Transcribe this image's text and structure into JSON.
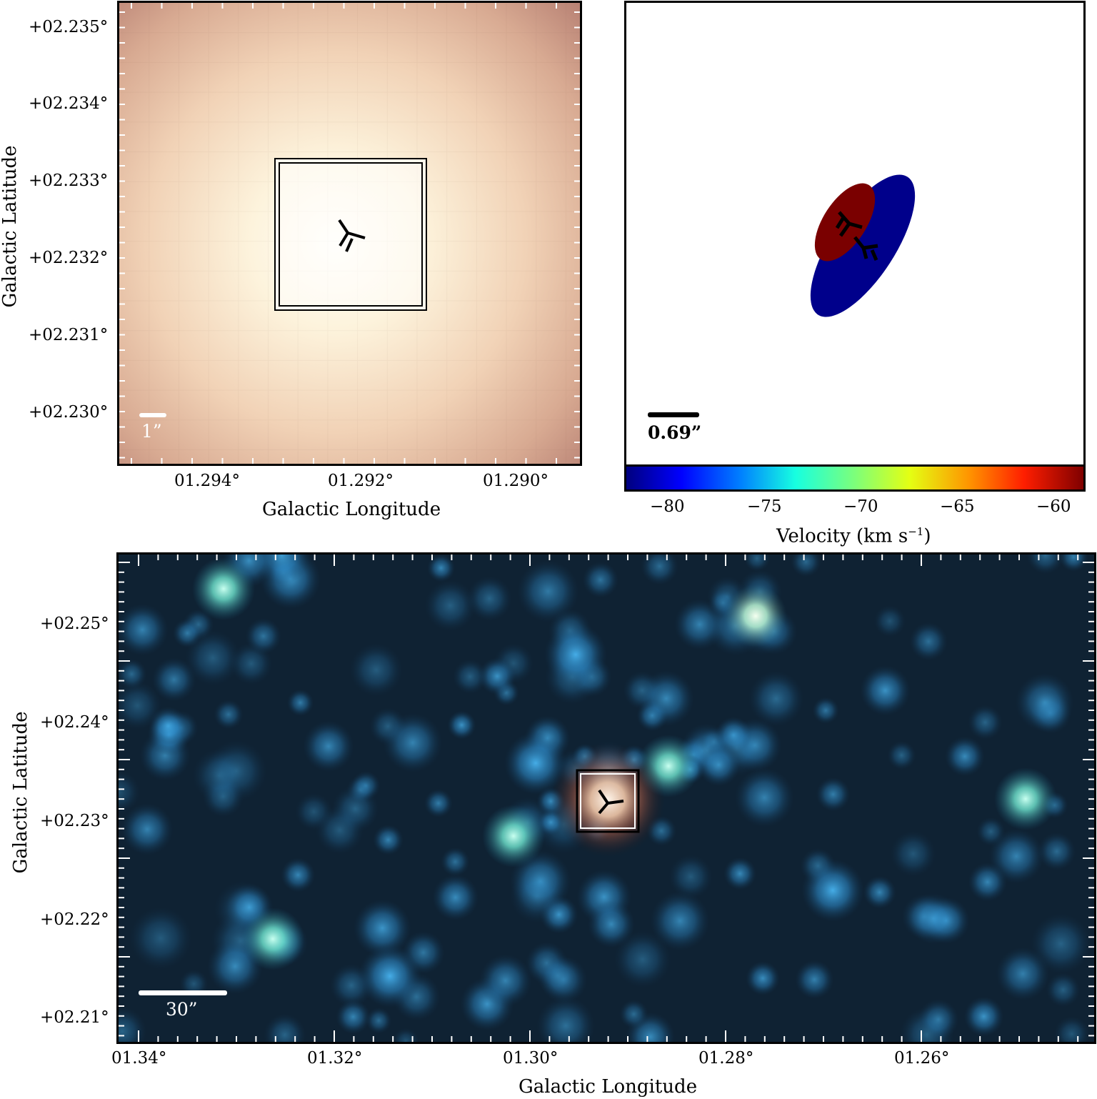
{
  "top_left": {
    "y_axis_label": "Galactic Latitude",
    "x_axis_label": "Galactic Longitude",
    "y_ticks": [
      "+02.235°",
      "+02.234°",
      "+02.233°",
      "+02.232°",
      "+02.231°",
      "+02.230°"
    ],
    "x_ticks": [
      "01.294°",
      "01.292°",
      "01.290°"
    ],
    "scalebar_label": "1”"
  },
  "top_right": {
    "scalebar_label": "0.69”",
    "colorbar_ticks": [
      "−80",
      "−75",
      "−70",
      "−65",
      "−60"
    ],
    "colorbar_label": "Velocity (km s",
    "colorbar_label_sup": "−1",
    "colorbar_label_end": ")",
    "colors": {
      "red_lobe": "#7a0000",
      "blue_lobe": "#00008b"
    }
  },
  "bottom": {
    "y_axis_label": "Galactic Latitude",
    "x_axis_label": "Galactic Longitude",
    "y_ticks": [
      "+02.25°",
      "+02.24°",
      "+02.23°",
      "+02.22°",
      "+02.21°"
    ],
    "x_ticks": [
      "01.34°",
      "01.32°",
      "01.30°",
      "01.28°",
      "01.26°"
    ],
    "scalebar_label": "30”"
  }
}
